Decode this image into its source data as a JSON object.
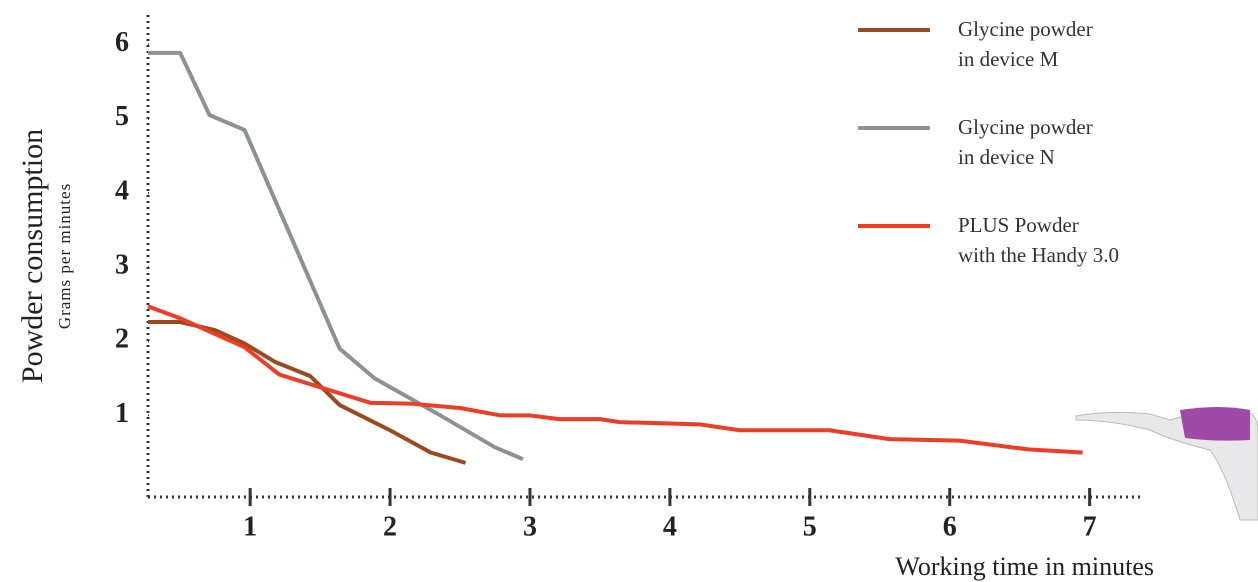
{
  "chart_data": {
    "type": "line",
    "y_label": "Powder consumption",
    "y_sublabel": "Grams per minutes",
    "x_label": "Working time in minutes",
    "xlim": [
      0.27,
      7.36
    ],
    "ylim": [
      -0.1,
      6.4
    ],
    "xticks": [
      1,
      2,
      3,
      4,
      5,
      6,
      7
    ],
    "yticks": [
      1,
      2,
      3,
      4,
      5,
      6
    ],
    "series": [
      {
        "name": "Glycine powder\nin device M",
        "color": "#9a4a1e",
        "x": [
          0.27,
          0.5,
          0.75,
          0.96,
          1.18,
          1.43,
          1.64,
          2.0,
          2.29,
          2.54
        ],
        "values": [
          2.26,
          2.26,
          2.15,
          1.97,
          1.72,
          1.53,
          1.14,
          0.8,
          0.5,
          0.36
        ]
      },
      {
        "name": "Glycine powder\nin device N",
        "color": "#8a9294",
        "x": [
          0.27,
          0.5,
          0.71,
          0.96,
          1.64,
          1.89,
          2.36,
          2.75,
          2.95
        ],
        "values": [
          5.89,
          5.89,
          5.05,
          4.85,
          1.9,
          1.5,
          1.0,
          0.57,
          0.41
        ]
      },
      {
        "name": "PLUS Powder\nwith the Handy 3.0",
        "color": "#f03c24",
        "x": [
          0.27,
          0.5,
          0.96,
          1.21,
          1.5,
          1.86,
          2.14,
          2.5,
          2.79,
          3.0,
          3.21,
          3.5,
          3.64,
          4.21,
          4.5,
          5.14,
          5.57,
          6.07,
          6.57,
          6.95
        ],
        "values": [
          2.47,
          2.31,
          1.92,
          1.55,
          1.38,
          1.17,
          1.16,
          1.1,
          1.0,
          1.0,
          0.95,
          0.95,
          0.91,
          0.88,
          0.8,
          0.8,
          0.68,
          0.66,
          0.54,
          0.5
        ]
      }
    ]
  }
}
